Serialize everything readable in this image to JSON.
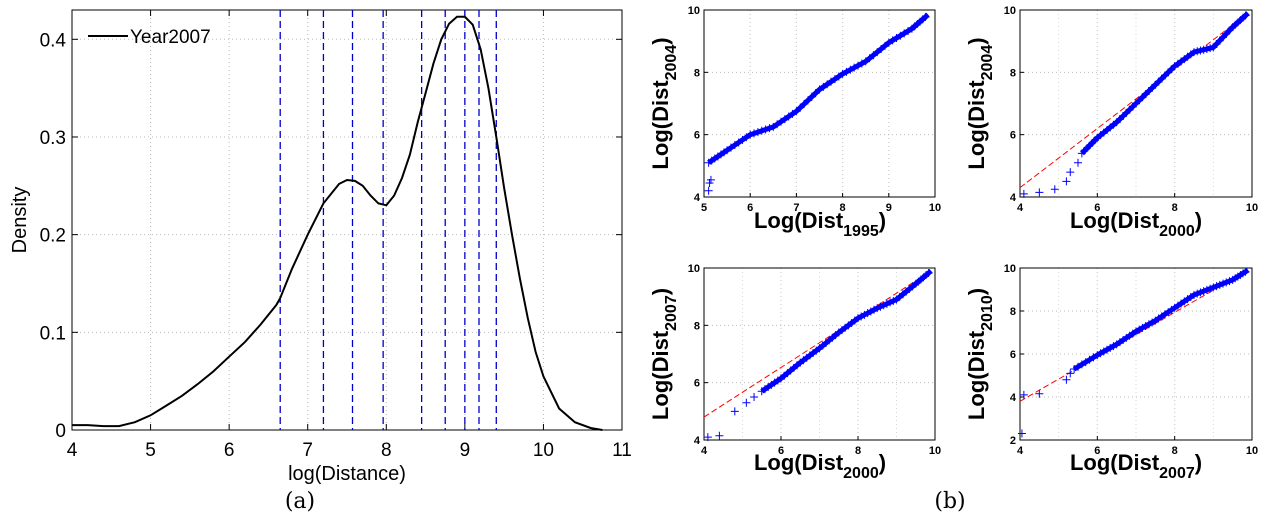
{
  "chart_data": [
    {
      "id": "a",
      "type": "line",
      "caption": "(a)",
      "xlabel": "log(Distance)",
      "ylabel": "Density",
      "xlim": [
        4,
        11
      ],
      "ylim": [
        0,
        0.43
      ],
      "xticks": [
        "4",
        "5",
        "6",
        "7",
        "8",
        "9",
        "10",
        "11"
      ],
      "yticks": [
        "0",
        "0.1",
        "0.2",
        "0.3",
        "0.4"
      ],
      "grid": true,
      "legend": {
        "position": "top-left",
        "entries": [
          "Year2007"
        ]
      },
      "series": [
        {
          "name": "Year2007",
          "color": "#000000",
          "x": [
            4.0,
            4.2,
            4.4,
            4.6,
            4.8,
            5.0,
            5.2,
            5.4,
            5.6,
            5.8,
            6.0,
            6.2,
            6.4,
            6.6,
            6.65,
            6.8,
            7.0,
            7.2,
            7.4,
            7.5,
            7.6,
            7.7,
            7.8,
            7.9,
            8.0,
            8.1,
            8.2,
            8.3,
            8.4,
            8.5,
            8.6,
            8.7,
            8.8,
            8.9,
            9.0,
            9.1,
            9.2,
            9.3,
            9.4,
            9.5,
            9.6,
            9.7,
            9.8,
            9.9,
            10.0,
            10.2,
            10.4,
            10.6,
            10.75
          ],
          "y": [
            0.005,
            0.005,
            0.004,
            0.004,
            0.008,
            0.015,
            0.025,
            0.035,
            0.047,
            0.06,
            0.075,
            0.09,
            0.108,
            0.128,
            0.135,
            0.165,
            0.2,
            0.232,
            0.252,
            0.256,
            0.255,
            0.25,
            0.24,
            0.232,
            0.23,
            0.24,
            0.258,
            0.282,
            0.315,
            0.345,
            0.375,
            0.4,
            0.416,
            0.423,
            0.423,
            0.415,
            0.39,
            0.35,
            0.3,
            0.248,
            0.2,
            0.155,
            0.115,
            0.08,
            0.055,
            0.022,
            0.008,
            0.002,
            0.0
          ]
        }
      ],
      "vlines": [
        6.65,
        7.2,
        7.57,
        7.96,
        8.45,
        8.75,
        9.0,
        9.18,
        9.4
      ],
      "vline_color": "#0000cc"
    },
    {
      "id": "b1",
      "type": "scatter",
      "xlabel_base": "Log(Dist",
      "xlabel_sub": "1995",
      "xlabel_end": ")",
      "ylabel_base": "Log(Dist",
      "ylabel_sub": "2004",
      "ylabel_end": ")",
      "xlim": [
        5,
        10
      ],
      "ylim": [
        4,
        10
      ],
      "xticks": [
        "5",
        "6",
        "7",
        "8",
        "9",
        "10"
      ],
      "yticks": [
        "4",
        "6",
        "8",
        "10"
      ],
      "marker_color": "#0000ff",
      "ref_line": null,
      "outliers": [
        [
          5.1,
          4.2
        ],
        [
          5.12,
          4.45
        ],
        [
          5.15,
          4.55
        ]
      ],
      "curve": [
        [
          5.1,
          5.1
        ],
        [
          5.5,
          5.5
        ],
        [
          6.0,
          6.0
        ],
        [
          6.5,
          6.25
        ],
        [
          7.0,
          6.75
        ],
        [
          7.5,
          7.45
        ],
        [
          8.0,
          7.95
        ],
        [
          8.5,
          8.35
        ],
        [
          9.0,
          8.95
        ],
        [
          9.5,
          9.4
        ],
        [
          9.85,
          9.85
        ]
      ]
    },
    {
      "id": "b2",
      "type": "scatter",
      "xlabel_base": "Log(Dist",
      "xlabel_sub": "2000",
      "xlabel_end": ")",
      "ylabel_base": "Log(Dist",
      "ylabel_sub": "2004",
      "ylabel_end": ")",
      "xlim": [
        4,
        10
      ],
      "ylim": [
        4,
        10
      ],
      "xticks": [
        "4",
        "6",
        "8",
        "10"
      ],
      "yticks": [
        "4",
        "6",
        "8",
        "10"
      ],
      "marker_color": "#0000ff",
      "ref_line": [
        [
          4.0,
          4.3
        ],
        [
          9.9,
          9.9
        ]
      ],
      "outliers": [
        [
          4.1,
          4.1
        ],
        [
          4.5,
          4.15
        ],
        [
          4.9,
          4.25
        ],
        [
          5.2,
          4.5
        ],
        [
          5.3,
          4.8
        ],
        [
          5.5,
          5.1
        ]
      ],
      "curve": [
        [
          5.6,
          5.4
        ],
        [
          6.0,
          5.9
        ],
        [
          6.5,
          6.4
        ],
        [
          7.0,
          7.0
        ],
        [
          7.5,
          7.6
        ],
        [
          8.0,
          8.2
        ],
        [
          8.5,
          8.65
        ],
        [
          9.0,
          8.8
        ],
        [
          9.5,
          9.45
        ],
        [
          9.9,
          9.9
        ]
      ]
    },
    {
      "id": "b3",
      "type": "scatter",
      "xlabel_base": "Log(Dist",
      "xlabel_sub": "2000",
      "xlabel_end": ")",
      "ylabel_base": "Log(Dist",
      "ylabel_sub": "2007",
      "ylabel_end": ")",
      "xlim": [
        4,
        10
      ],
      "ylim": [
        4,
        10
      ],
      "xticks": [
        "4",
        "6",
        "8",
        "10"
      ],
      "yticks": [
        "4",
        "6",
        "8",
        "10"
      ],
      "marker_color": "#0000ff",
      "ref_line": [
        [
          4.0,
          4.8
        ],
        [
          9.9,
          9.9
        ]
      ],
      "outliers": [
        [
          4.1,
          4.1
        ],
        [
          4.4,
          4.15
        ],
        [
          4.8,
          5.0
        ],
        [
          5.1,
          5.3
        ],
        [
          5.3,
          5.5
        ]
      ],
      "curve": [
        [
          5.5,
          5.7
        ],
        [
          6.0,
          6.15
        ],
        [
          6.5,
          6.7
        ],
        [
          7.0,
          7.2
        ],
        [
          7.5,
          7.75
        ],
        [
          8.0,
          8.25
        ],
        [
          8.5,
          8.6
        ],
        [
          9.0,
          8.9
        ],
        [
          9.5,
          9.45
        ],
        [
          9.9,
          9.9
        ]
      ]
    },
    {
      "id": "b4",
      "type": "scatter",
      "xlabel_base": "Log(Dist",
      "xlabel_sub": "2007",
      "xlabel_end": ")",
      "ylabel_base": "Log(Dist",
      "ylabel_sub": "2010",
      "ylabel_end": ")",
      "xlim": [
        4,
        10
      ],
      "ylim": [
        2,
        10
      ],
      "xticks": [
        "4",
        "6",
        "8",
        "10"
      ],
      "yticks": [
        "2",
        "4",
        "6",
        "8",
        "10"
      ],
      "marker_color": "#0000ff",
      "ref_line": [
        [
          4.0,
          3.8
        ],
        [
          9.9,
          9.9
        ]
      ],
      "outliers": [
        [
          4.05,
          2.3
        ],
        [
          4.1,
          4.1
        ],
        [
          4.5,
          4.15
        ],
        [
          5.2,
          4.8
        ],
        [
          5.3,
          5.1
        ]
      ],
      "curve": [
        [
          5.4,
          5.3
        ],
        [
          6.0,
          5.95
        ],
        [
          6.5,
          6.45
        ],
        [
          7.0,
          7.05
        ],
        [
          7.5,
          7.55
        ],
        [
          8.0,
          8.15
        ],
        [
          8.5,
          8.75
        ],
        [
          9.0,
          9.1
        ],
        [
          9.5,
          9.45
        ],
        [
          9.9,
          9.9
        ]
      ]
    }
  ],
  "captions": {
    "a": "(a)",
    "b": "(b)"
  }
}
